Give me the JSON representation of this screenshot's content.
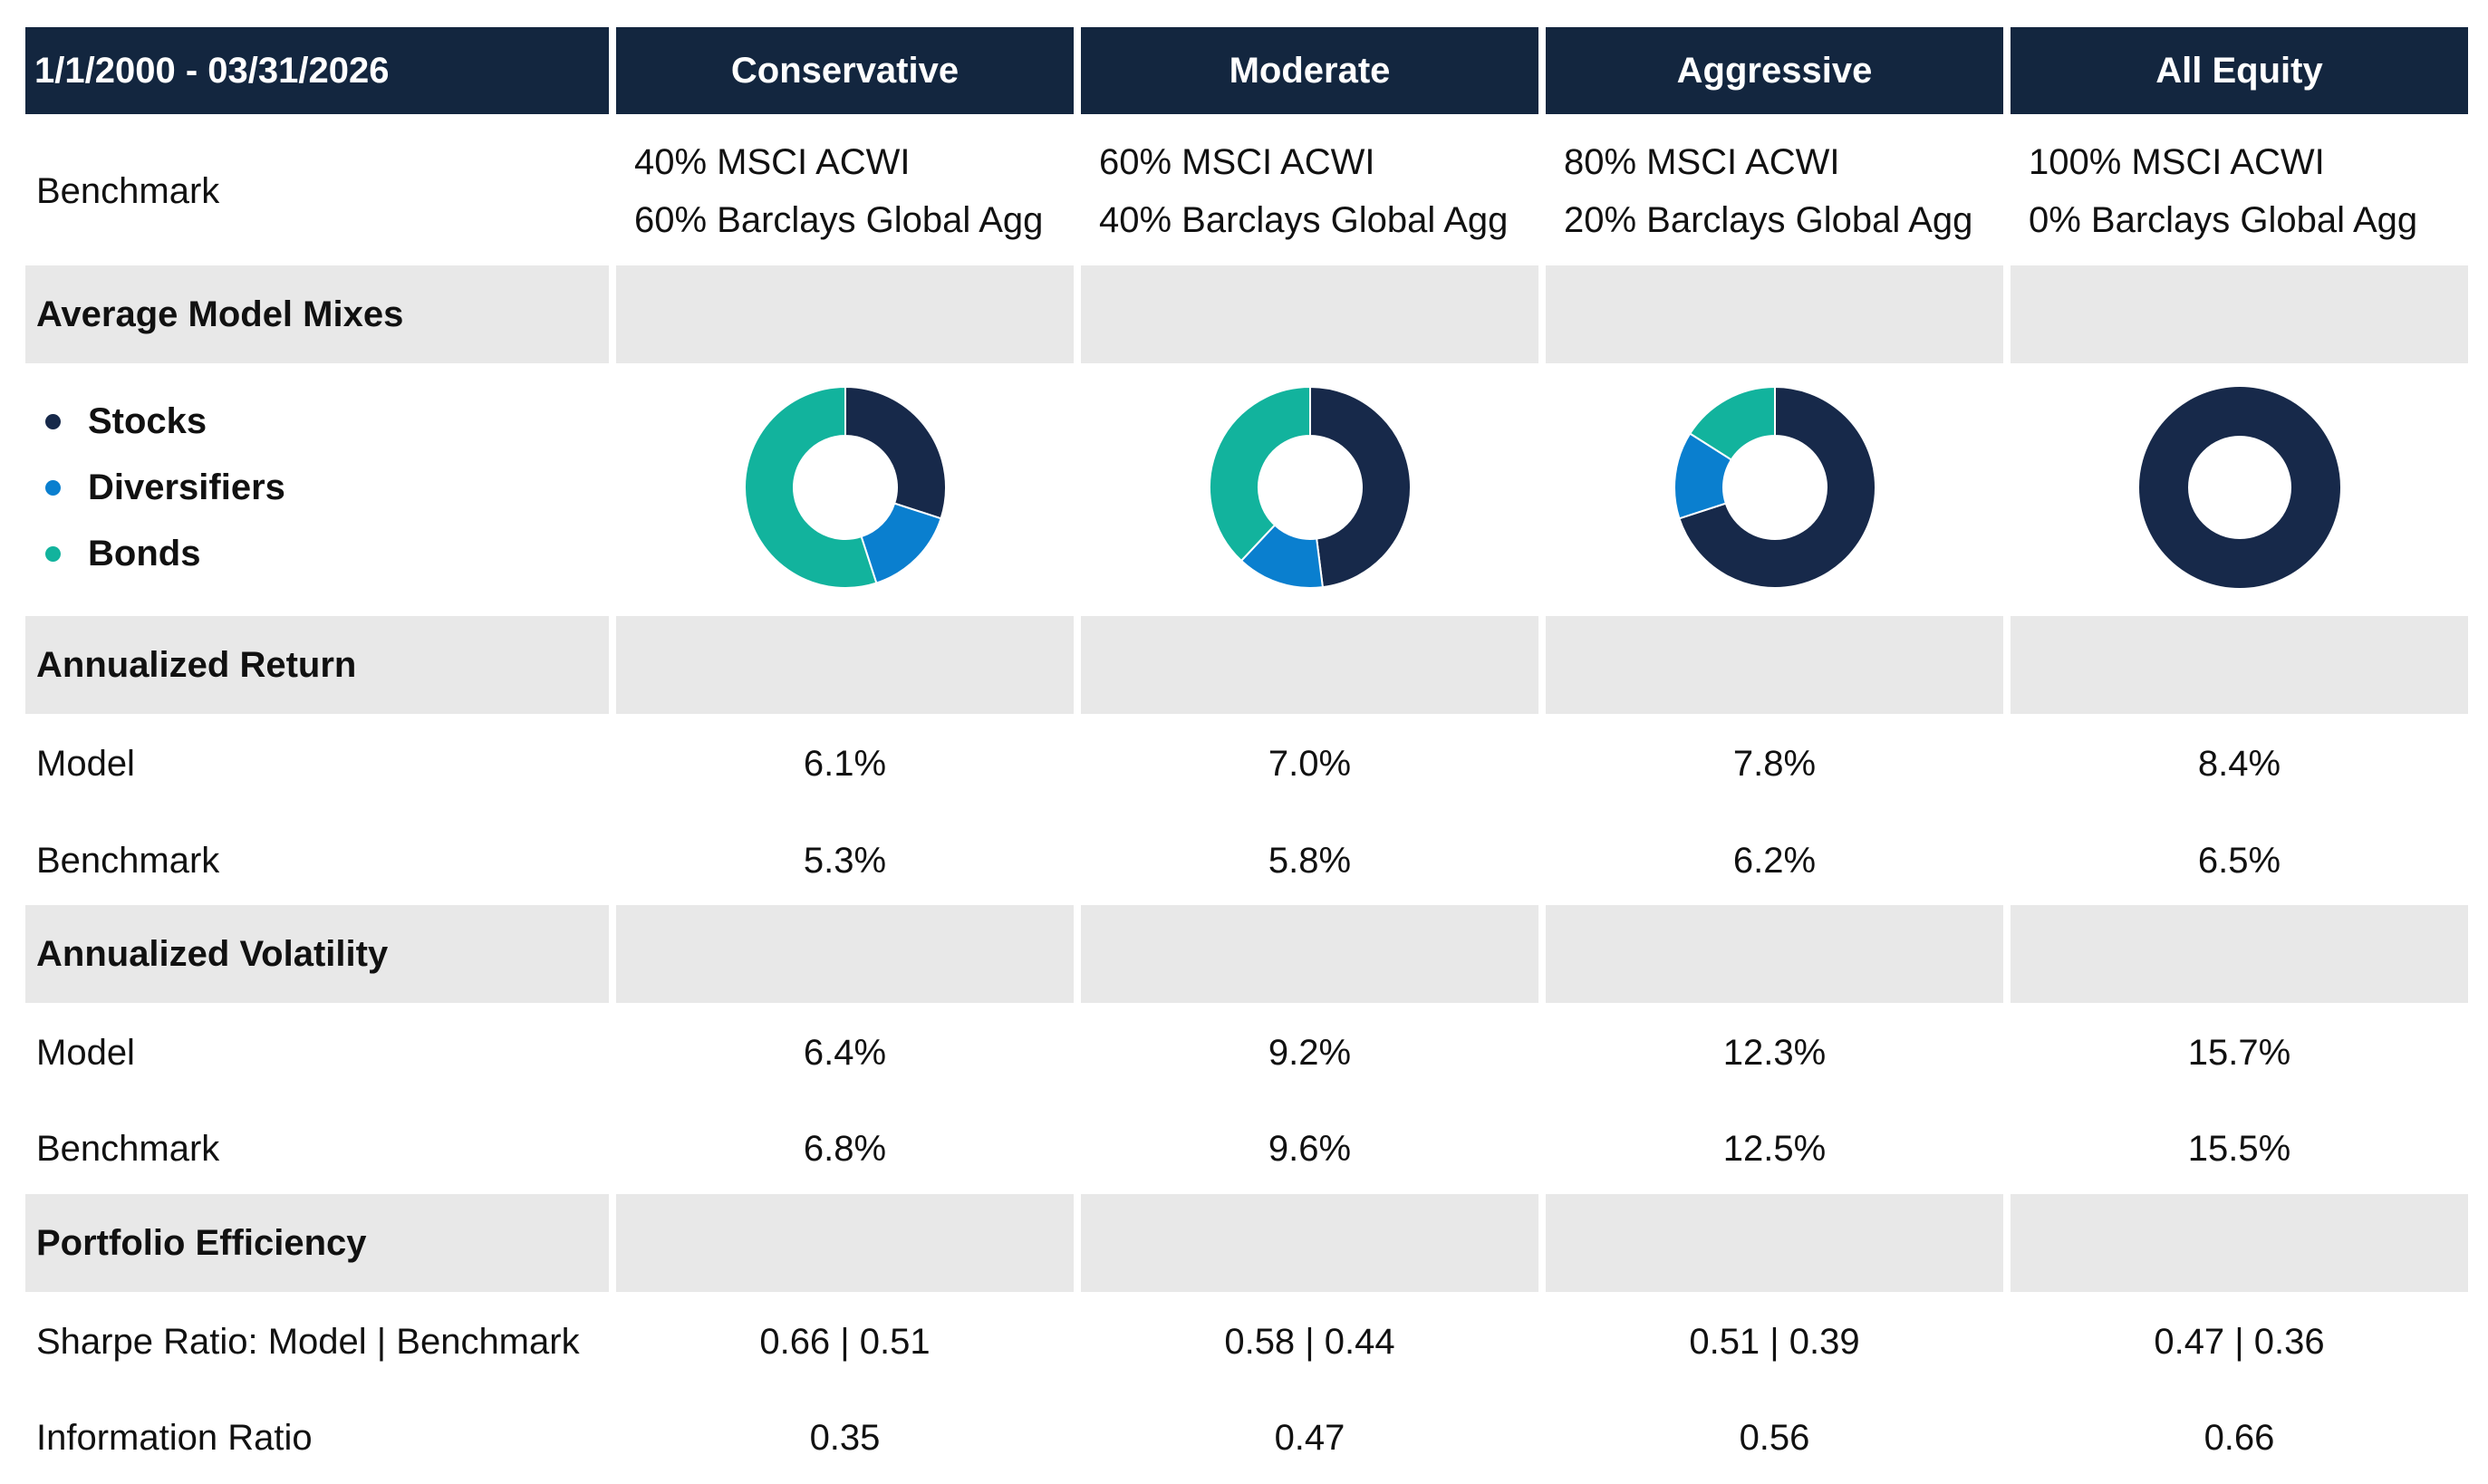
{
  "header": {
    "period": "1/1/2000 - 03/31/2026",
    "columns": [
      "Conservative",
      "Moderate",
      "Aggressive",
      "All Equity"
    ]
  },
  "benchmark": {
    "label": "Benchmark",
    "lines": [
      [
        "40% MSCI ACWI",
        "60% Barclays Global Agg"
      ],
      [
        "60% MSCI ACWI",
        "40% Barclays Global Agg"
      ],
      [
        "80% MSCI ACWI",
        "20% Barclays Global Agg"
      ],
      [
        "100% MSCI ACWI",
        "0% Barclays Global Agg"
      ]
    ]
  },
  "sections": {
    "mixes": "Average Model Mixes",
    "return": "Annualized Return",
    "volatility": "Annualized Volatility",
    "efficiency": "Portfolio Efficiency"
  },
  "legend": [
    {
      "label": "Stocks",
      "color": "#17294a"
    },
    {
      "label": "Diversifiers",
      "color": "#0a7fcf"
    },
    {
      "label": "Bonds",
      "color": "#12b39d"
    }
  ],
  "chart_data": {
    "type": "pie",
    "categories": [
      "Stocks",
      "Diversifiers",
      "Bonds"
    ],
    "colors": [
      "#17294a",
      "#0a7fcf",
      "#12b39d"
    ],
    "series": [
      {
        "name": "Conservative",
        "values": [
          30,
          15,
          55
        ]
      },
      {
        "name": "Moderate",
        "values": [
          48,
          14,
          38
        ]
      },
      {
        "name": "Aggressive",
        "values": [
          70,
          14,
          16
        ]
      },
      {
        "name": "All Equity",
        "values": [
          100,
          0,
          0
        ]
      }
    ]
  },
  "rows": {
    "return_model": {
      "label": "Model",
      "values": [
        "6.1%",
        "7.0%",
        "7.8%",
        "8.4%"
      ]
    },
    "return_benchmark": {
      "label": "Benchmark",
      "values": [
        "5.3%",
        "5.8%",
        "6.2%",
        "6.5%"
      ]
    },
    "vol_model": {
      "label": "Model",
      "values": [
        "6.4%",
        "9.2%",
        "12.3%",
        "15.7%"
      ]
    },
    "vol_benchmark": {
      "label": "Benchmark",
      "values": [
        "6.8%",
        "9.6%",
        "12.5%",
        "15.5%"
      ]
    },
    "sharpe": {
      "label": "Sharpe Ratio: Model | Benchmark",
      "values": [
        "0.66 | 0.51",
        "0.58 | 0.44",
        "0.51 | 0.39",
        "0.47 | 0.36"
      ]
    },
    "info": {
      "label": "Information Ratio",
      "values": [
        "0.35",
        "0.47",
        "0.56",
        "0.66"
      ]
    }
  }
}
